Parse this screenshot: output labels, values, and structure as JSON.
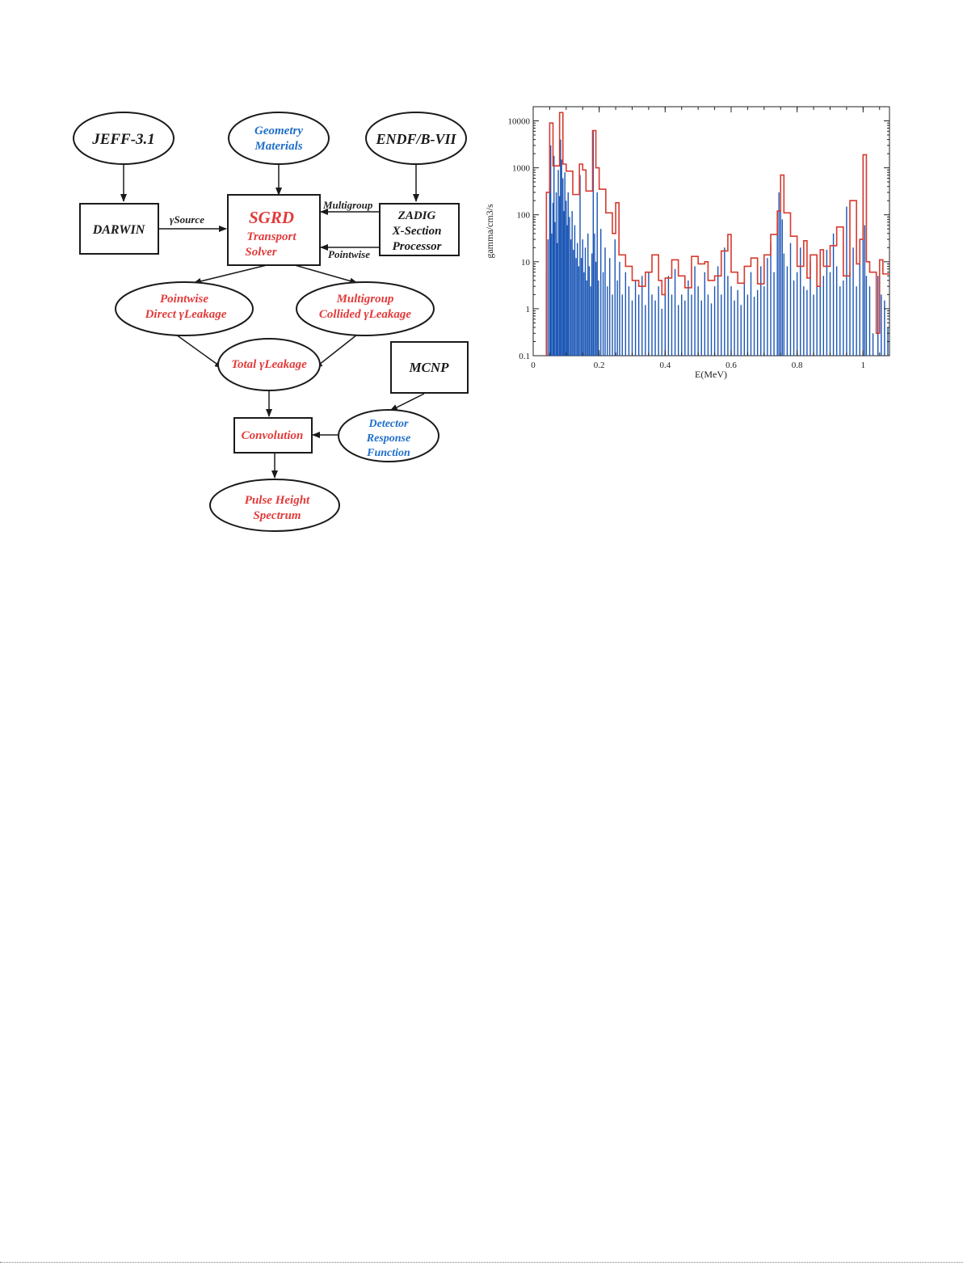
{
  "diagram": {
    "nodes": {
      "jeff": "JEFF-3.1",
      "geometry_1": "Geometry",
      "geometry_2": "Materials",
      "endf": "ENDF/B-VII",
      "darwin": "DARWIN",
      "sgrd_1": "SGRD",
      "sgrd_2": "Transport",
      "sgrd_3": "Solver",
      "zadig_1": "ZADIG",
      "zadig_2": "X-Section",
      "zadig_3": "Processor",
      "pointwise_1": "Pointwise",
      "pointwise_2": "Direct γLeakage",
      "multigroup_1": "Multigroup",
      "multigroup_2": "Collided γLeakage",
      "total": "Total γLeakage",
      "mcnp": "MCNP",
      "detector_1": "Detector",
      "detector_2": "Response",
      "detector_3": "Function",
      "convolution": "Convolution",
      "pulse_1": "Pulse Height",
      "pulse_2": "Spectrum"
    },
    "edge_labels": {
      "gamma_source": "γSource",
      "multigroup": "Multigroup",
      "pointwise": "Pointwise"
    },
    "colors": {
      "red": "#e23b3b",
      "blue": "#1f6fc9",
      "black": "#1a1a1a"
    }
  },
  "chart_data": {
    "type": "bar",
    "xlabel": "E(MeV)",
    "ylabel": "gamma/cm3/s",
    "xlim": [
      0,
      1.08
    ],
    "ylim": [
      0.1,
      20000
    ],
    "yscale": "log",
    "xticks": [
      "0",
      "0.2",
      "0.4",
      "0.6",
      "0.8",
      "1"
    ],
    "yticks": [
      "0.1",
      "1",
      "10",
      "100",
      "1000",
      "10000"
    ],
    "colors": {
      "pointwise": "#1a55b5",
      "multigroup": "#d63a2f"
    },
    "multigroup_steps": [
      [
        0.04,
        300
      ],
      [
        0.05,
        9000
      ],
      [
        0.06,
        1100
      ],
      [
        0.08,
        15000
      ],
      [
        0.09,
        1200
      ],
      [
        0.1,
        850
      ],
      [
        0.12,
        270
      ],
      [
        0.14,
        1200
      ],
      [
        0.15,
        900
      ],
      [
        0.16,
        320
      ],
      [
        0.18,
        6200
      ],
      [
        0.19,
        1000
      ],
      [
        0.2,
        350
      ],
      [
        0.22,
        110
      ],
      [
        0.24,
        40
      ],
      [
        0.25,
        180
      ],
      [
        0.26,
        14
      ],
      [
        0.28,
        8
      ],
      [
        0.3,
        4
      ],
      [
        0.32,
        3
      ],
      [
        0.34,
        6
      ],
      [
        0.36,
        14
      ],
      [
        0.38,
        4
      ],
      [
        0.39,
        2
      ],
      [
        0.4,
        4.5
      ],
      [
        0.42,
        11
      ],
      [
        0.44,
        5
      ],
      [
        0.46,
        2.8
      ],
      [
        0.48,
        13
      ],
      [
        0.5,
        9
      ],
      [
        0.52,
        10
      ],
      [
        0.53,
        4
      ],
      [
        0.55,
        5
      ],
      [
        0.57,
        17
      ],
      [
        0.59,
        38
      ],
      [
        0.6,
        6
      ],
      [
        0.62,
        3.5
      ],
      [
        0.64,
        8
      ],
      [
        0.66,
        12
      ],
      [
        0.68,
        3.4
      ],
      [
        0.7,
        14
      ],
      [
        0.72,
        38
      ],
      [
        0.74,
        120
      ],
      [
        0.75,
        700
      ],
      [
        0.76,
        110
      ],
      [
        0.78,
        35
      ],
      [
        0.8,
        8
      ],
      [
        0.82,
        28
      ],
      [
        0.83,
        4.5
      ],
      [
        0.84,
        14
      ],
      [
        0.86,
        3
      ],
      [
        0.87,
        18
      ],
      [
        0.88,
        8
      ],
      [
        0.9,
        22
      ],
      [
        0.92,
        55
      ],
      [
        0.94,
        5
      ],
      [
        0.96,
        200
      ],
      [
        0.98,
        9
      ],
      [
        0.99,
        30
      ],
      [
        1.0,
        1900
      ],
      [
        1.01,
        10
      ],
      [
        1.02,
        6
      ],
      [
        1.04,
        0.3
      ],
      [
        1.05,
        11
      ],
      [
        1.06,
        5.5
      ],
      [
        1.08,
        0.1
      ]
    ],
    "pointwise_spikes": [
      [
        0.04,
        6
      ],
      [
        0.045,
        30
      ],
      [
        0.05,
        400
      ],
      [
        0.053,
        3000
      ],
      [
        0.056,
        40
      ],
      [
        0.06,
        180
      ],
      [
        0.063,
        1800
      ],
      [
        0.066,
        70
      ],
      [
        0.07,
        300
      ],
      [
        0.073,
        25
      ],
      [
        0.076,
        900
      ],
      [
        0.08,
        250
      ],
      [
        0.083,
        4000
      ],
      [
        0.086,
        1500
      ],
      [
        0.09,
        600
      ],
      [
        0.093,
        120
      ],
      [
        0.096,
        800
      ],
      [
        0.1,
        200
      ],
      [
        0.103,
        60
      ],
      [
        0.106,
        300
      ],
      [
        0.11,
        90
      ],
      [
        0.114,
        30
      ],
      [
        0.118,
        120
      ],
      [
        0.122,
        18
      ],
      [
        0.126,
        60
      ],
      [
        0.13,
        12
      ],
      [
        0.134,
        25
      ],
      [
        0.138,
        8
      ],
      [
        0.142,
        700
      ],
      [
        0.146,
        12
      ],
      [
        0.15,
        30
      ],
      [
        0.154,
        6
      ],
      [
        0.158,
        20
      ],
      [
        0.162,
        4
      ],
      [
        0.166,
        40
      ],
      [
        0.17,
        8
      ],
      [
        0.174,
        3
      ],
      [
        0.178,
        15
      ],
      [
        0.182,
        6000
      ],
      [
        0.186,
        40
      ],
      [
        0.19,
        10
      ],
      [
        0.194,
        300
      ],
      [
        0.198,
        4
      ],
      [
        0.205,
        50
      ],
      [
        0.212,
        6
      ],
      [
        0.218,
        20
      ],
      [
        0.225,
        3
      ],
      [
        0.232,
        12
      ],
      [
        0.24,
        2
      ],
      [
        0.248,
        30
      ],
      [
        0.255,
        4
      ],
      [
        0.262,
        10
      ],
      [
        0.27,
        2
      ],
      [
        0.28,
        6
      ],
      [
        0.29,
        3
      ],
      [
        0.3,
        1.5
      ],
      [
        0.31,
        4
      ],
      [
        0.32,
        2
      ],
      [
        0.33,
        5
      ],
      [
        0.34,
        1.2
      ],
      [
        0.35,
        6
      ],
      [
        0.36,
        2
      ],
      [
        0.37,
        1.5
      ],
      [
        0.38,
        3
      ],
      [
        0.39,
        1
      ],
      [
        0.4,
        3
      ],
      [
        0.41,
        5
      ],
      [
        0.42,
        2
      ],
      [
        0.43,
        7
      ],
      [
        0.44,
        1.2
      ],
      [
        0.45,
        2
      ],
      [
        0.46,
        1.5
      ],
      [
        0.47,
        4
      ],
      [
        0.48,
        2
      ],
      [
        0.49,
        8
      ],
      [
        0.5,
        3
      ],
      [
        0.51,
        1.5
      ],
      [
        0.52,
        6
      ],
      [
        0.53,
        2
      ],
      [
        0.54,
        1.3
      ],
      [
        0.55,
        3
      ],
      [
        0.56,
        8
      ],
      [
        0.57,
        2
      ],
      [
        0.58,
        20
      ],
      [
        0.59,
        5
      ],
      [
        0.6,
        3
      ],
      [
        0.61,
        1.5
      ],
      [
        0.62,
        2.5
      ],
      [
        0.63,
        1.2
      ],
      [
        0.64,
        4
      ],
      [
        0.65,
        2
      ],
      [
        0.66,
        6
      ],
      [
        0.67,
        1.8
      ],
      [
        0.68,
        2.5
      ],
      [
        0.69,
        8
      ],
      [
        0.7,
        3
      ],
      [
        0.71,
        12
      ],
      [
        0.72,
        25
      ],
      [
        0.73,
        6
      ],
      [
        0.74,
        60
      ],
      [
        0.745,
        300
      ],
      [
        0.75,
        650
      ],
      [
        0.755,
        80
      ],
      [
        0.76,
        15
      ],
      [
        0.77,
        8
      ],
      [
        0.78,
        25
      ],
      [
        0.79,
        4
      ],
      [
        0.8,
        6
      ],
      [
        0.81,
        20
      ],
      [
        0.82,
        3
      ],
      [
        0.83,
        2.5
      ],
      [
        0.84,
        10
      ],
      [
        0.85,
        2
      ],
      [
        0.86,
        12
      ],
      [
        0.87,
        3
      ],
      [
        0.88,
        5
      ],
      [
        0.89,
        18
      ],
      [
        0.9,
        6
      ],
      [
        0.91,
        40
      ],
      [
        0.92,
        8
      ],
      [
        0.93,
        3
      ],
      [
        0.94,
        4
      ],
      [
        0.95,
        150
      ],
      [
        0.96,
        6
      ],
      [
        0.97,
        20
      ],
      [
        0.98,
        3
      ],
      [
        0.99,
        12
      ],
      [
        1.0,
        1800
      ],
      [
        1.005,
        60
      ],
      [
        1.01,
        5
      ],
      [
        1.02,
        3
      ],
      [
        1.03,
        0.3
      ],
      [
        1.045,
        5
      ],
      [
        1.055,
        2
      ],
      [
        1.065,
        1.5
      ],
      [
        1.075,
        0.4
      ]
    ]
  }
}
